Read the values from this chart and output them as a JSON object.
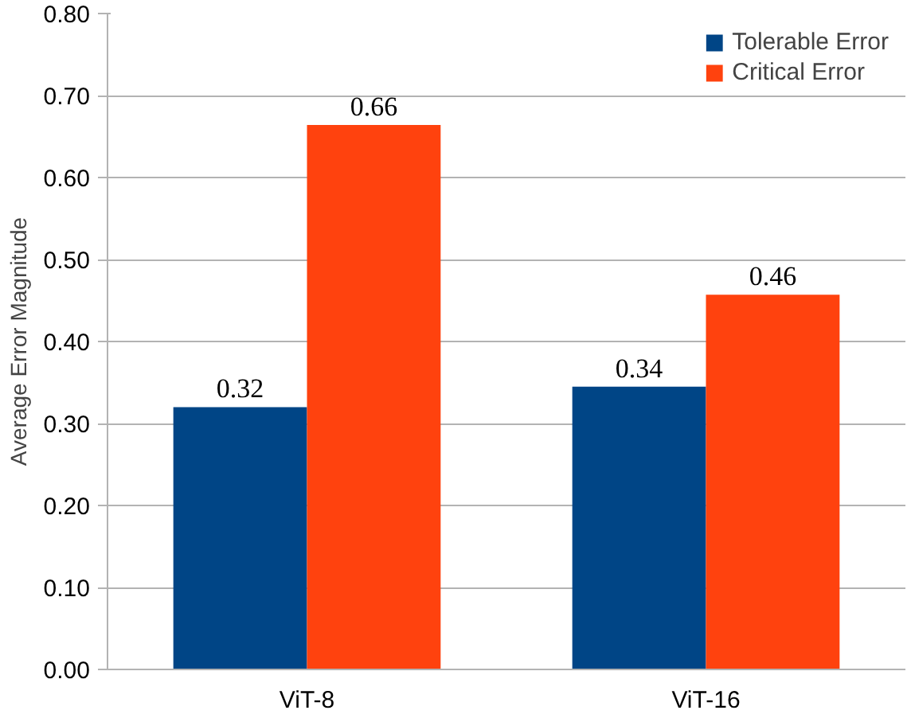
{
  "chart_data": {
    "type": "bar",
    "ylabel": "Average Error Magnitude",
    "categories": [
      "ViT-8",
      "ViT-16"
    ],
    "series": [
      {
        "name": "Tolerable Error",
        "color": "#004586",
        "values": [
          0.32,
          0.345
        ],
        "value_labels": [
          "0.32",
          "0.34"
        ]
      },
      {
        "name": "Critical Error",
        "color": "#ff420e",
        "values": [
          0.664,
          0.457
        ],
        "value_labels": [
          "0.66",
          "0.46"
        ]
      }
    ],
    "ylim": [
      0,
      0.8
    ],
    "yticks": [
      {
        "value": 0,
        "label": "0.00"
      },
      {
        "value": 0.1,
        "label": "0.10"
      },
      {
        "value": 0.2,
        "label": "0.20"
      },
      {
        "value": 0.3,
        "label": "0.30"
      },
      {
        "value": 0.4,
        "label": "0.40"
      },
      {
        "value": 0.5,
        "label": "0.50"
      },
      {
        "value": 0.6,
        "label": "0.60"
      },
      {
        "value": 0.7,
        "label": "0.70"
      },
      {
        "value": 0.8,
        "label": "0.80"
      }
    ],
    "grid": "y",
    "legend": "top right"
  }
}
